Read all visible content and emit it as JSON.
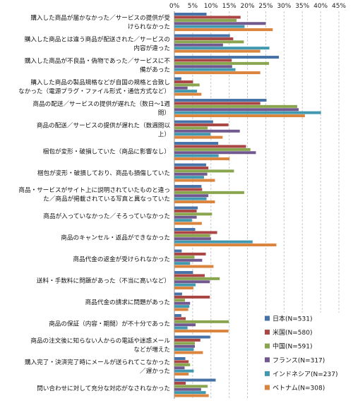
{
  "chart_data": {
    "type": "bar",
    "orientation": "horizontal",
    "title": "",
    "xlabel": "",
    "ylabel": "",
    "xlim": [
      0,
      45
    ],
    "x_ticks": [
      "0%",
      "5%",
      "10%",
      "15%",
      "20%",
      "25%",
      "30%",
      "35%",
      "40%",
      "45%"
    ],
    "grid": true,
    "legend_position": "bottom-right",
    "categories": [
      [
        "購入した商品が届かなかった／サービスの提供が受",
        "けられなかった"
      ],
      [
        "購入した商品とは違う商品が配送された／サービスの",
        "内容が違った"
      ],
      [
        "購入した商品が不良品・偽物であった／サービスに不",
        "備があった"
      ],
      [
        "購入した商品の製品規格などが自国の規格と合致し",
        "なかった（電源プラグ・ファイル形式・通信方式など）"
      ],
      [
        "商品の配送／サービスの提供が遅れた（数日～1週",
        "間）"
      ],
      [
        "商品の配送／サービスの提供が遅れた（数週間以",
        "上）"
      ],
      [
        "梱包が変形・破損していた（商品に影響なし）"
      ],
      [
        "梱包が変形・破損しており、商品も損傷していた"
      ],
      [
        "商品・サービスがサイト上に説明されていたものと違っ",
        "た／商品が掲載されている写真と異なっていた"
      ],
      [
        "商品が入っていなかった／そろっていなかった"
      ],
      [
        "商品のキャンセル・返品ができなかった"
      ],
      [
        "商品代金の返金が受けられなかった"
      ],
      [
        "送料・手数料に問題があった（不当に高いなど）"
      ],
      [
        "商品代金の請求に問題があった"
      ],
      [
        "商品の保証（内容・期間）が不十分であった"
      ],
      [
        "商品の注文後に知らない人からの電話や迷惑メール",
        "などが増えた"
      ],
      [
        "購入完了・決済完了時にメールが送られてこなかった",
        "／遅かった"
      ],
      [
        "問い合わせに対して充分な対応がなされなかった"
      ]
    ],
    "series": [
      {
        "name": "日本(N=531)",
        "color": "#4572a7",
        "values": [
          8.8,
          15.2,
          28.6,
          1.9,
          25.2,
          10.6,
          12.0,
          8.7,
          7.4,
          6.4,
          5.7,
          2.0,
          5.1,
          2.1,
          1.9,
          9.8,
          3.0,
          11.3
        ]
      },
      {
        "name": "米国(N=580)",
        "color": "#aa4643",
        "values": [
          18.1,
          16.1,
          15.7,
          5.1,
          23.5,
          14.8,
          19.6,
          9.3,
          7.6,
          6.1,
          11.7,
          8.6,
          8.3,
          9.7,
          3.1,
          7.1,
          3.9,
          3.1
        ]
      },
      {
        "name": "中国(N=591)",
        "color": "#89a54e",
        "values": [
          17.0,
          19.0,
          25.9,
          6.9,
          33.6,
          9.1,
          20.8,
          16.3,
          19.1,
          10.3,
          9.8,
          5.5,
          12.4,
          2.9,
          14.9,
          5.6,
          4.3,
          9.1
        ]
      },
      {
        "name": "フランス(N=317)",
        "color": "#71588f",
        "values": [
          25.0,
          13.3,
          15.8,
          3.6,
          34.0,
          17.9,
          22.3,
          9.0,
          9.3,
          6.1,
          10.0,
          7.6,
          9.7,
          4.3,
          5.8,
          5.6,
          2.8,
          7.3
        ]
      },
      {
        "name": "インドネシア(N=237)",
        "color": "#4198af",
        "values": [
          19.2,
          26.0,
          16.7,
          6.2,
          40.1,
          9.9,
          12.1,
          8.1,
          8.8,
          4.8,
          21.4,
          4.3,
          5.8,
          4.1,
          3.6,
          5.3,
          5.3,
          8.6
        ]
      },
      {
        "name": "ベトナム(N=308)",
        "color": "#db843d",
        "values": [
          26.9,
          23.5,
          23.5,
          7.4,
          35.7,
          13.2,
          15.1,
          11.1,
          11.1,
          7.5,
          27.9,
          10.7,
          5.2,
          3.8,
          14.8,
          7.8,
          3.9,
          9.4
        ]
      }
    ]
  }
}
